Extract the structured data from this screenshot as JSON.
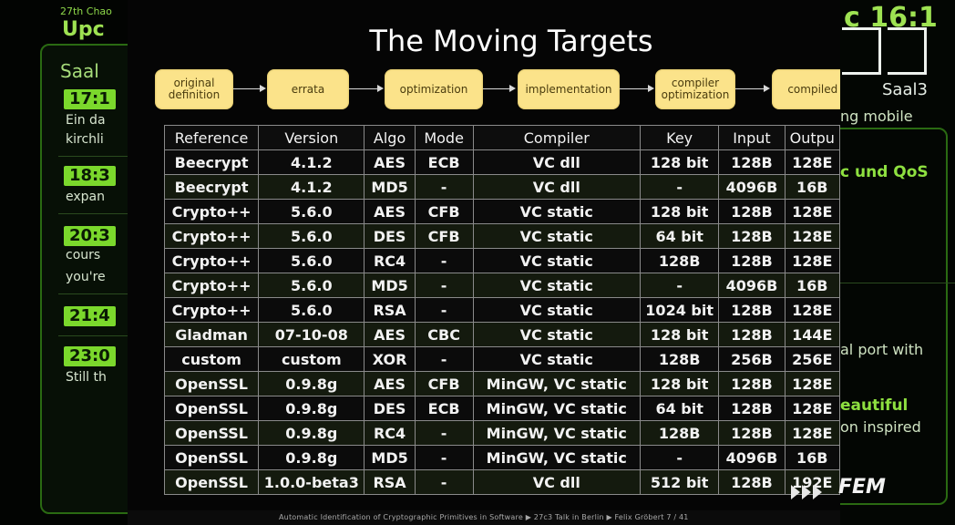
{
  "left_schedule": {
    "header_small": "27th Chao",
    "header_big": "Upc",
    "room": "Saal",
    "entries": [
      {
        "time": "17:1",
        "lines": [
          "Ein da",
          "kirchli"
        ]
      },
      {
        "time": "18:3",
        "lines": [
          "expan"
        ]
      },
      {
        "time": "20:3",
        "lines": [
          "cours",
          "you're"
        ]
      },
      {
        "time": "21:4",
        "lines": []
      },
      {
        "time": "23:0",
        "lines": [
          "Still th"
        ]
      }
    ]
  },
  "right_schedule": {
    "big_time": "c 16:1",
    "room": "Saal3",
    "lines": [
      "ng mobile",
      "c und QoS",
      "al port with",
      "eautiful",
      "on inspired"
    ]
  },
  "slide": {
    "title": "The Moving Targets",
    "flow": [
      "original\ndefinition",
      "errata",
      "optimization",
      "implementation",
      "compiler\noptimization",
      "compiled c"
    ],
    "table": {
      "headers": [
        "Reference",
        "Version",
        "Algo",
        "Mode",
        "Compiler",
        "Key",
        "Input",
        "Outpu"
      ],
      "rows": [
        [
          "Beecrypt",
          "4.1.2",
          "AES",
          "ECB",
          "VC dll",
          "128 bit",
          "128B",
          "128E"
        ],
        [
          "Beecrypt",
          "4.1.2",
          "MD5",
          "-",
          "VC dll",
          "-",
          "4096B",
          "16B"
        ],
        [
          "Crypto++",
          "5.6.0",
          "AES",
          "CFB",
          "VC static",
          "128 bit",
          "128B",
          "128E"
        ],
        [
          "Crypto++",
          "5.6.0",
          "DES",
          "CFB",
          "VC static",
          "64 bit",
          "128B",
          "128E"
        ],
        [
          "Crypto++",
          "5.6.0",
          "RC4",
          "-",
          "VC static",
          "128B",
          "128B",
          "128E"
        ],
        [
          "Crypto++",
          "5.6.0",
          "MD5",
          "-",
          "VC static",
          "-",
          "4096B",
          "16B"
        ],
        [
          "Crypto++",
          "5.6.0",
          "RSA",
          "-",
          "VC static",
          "1024 bit",
          "128B",
          "128E"
        ],
        [
          "Gladman",
          "07-10-08",
          "AES",
          "CBC",
          "VC static",
          "128 bit",
          "128B",
          "144E"
        ],
        [
          "custom",
          "custom",
          "XOR",
          "-",
          "VC static",
          "128B",
          "256B",
          "256E"
        ],
        [
          "OpenSSL",
          "0.9.8g",
          "AES",
          "CFB",
          "MinGW, VC static",
          "128 bit",
          "128B",
          "128E"
        ],
        [
          "OpenSSL",
          "0.9.8g",
          "DES",
          "ECB",
          "MinGW, VC static",
          "64 bit",
          "128B",
          "128E"
        ],
        [
          "OpenSSL",
          "0.9.8g",
          "RC4",
          "-",
          "MinGW, VC static",
          "128B",
          "128B",
          "128E"
        ],
        [
          "OpenSSL",
          "0.9.8g",
          "MD5",
          "-",
          "MinGW, VC static",
          "-",
          "4096B",
          "16B"
        ],
        [
          "OpenSSL",
          "1.0.0-beta3",
          "RSA",
          "-",
          "VC dll",
          "512 bit",
          "128B",
          "192E"
        ]
      ]
    },
    "footer": "Automatic Identification of Cryptographic Primitives in Software  ▶  27c3 Talk in Berlin  ▶  Felix Gröbert    7 / 41",
    "brand": "FEM"
  },
  "colors": {
    "accent_green": "#7bd82c",
    "flow_box": "#fbe38a",
    "table_border": "#8a8a8a"
  }
}
